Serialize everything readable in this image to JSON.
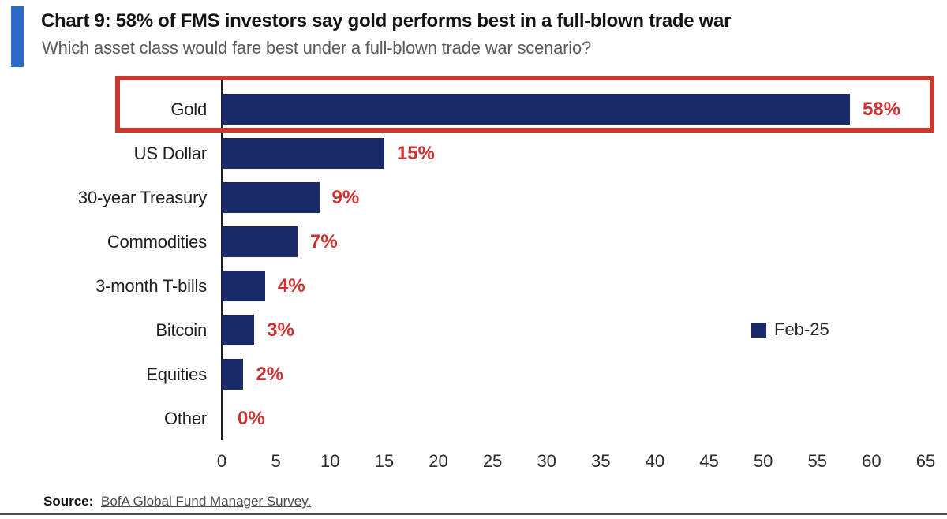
{
  "header": {
    "title": "Chart 9: 58% of FMS investors say gold performs best in a full-blown trade war",
    "subtitle": "Which asset class would fare best under a full-blown trade war scenario?",
    "accent_color": "#2b6bc9"
  },
  "chart_data": {
    "type": "bar",
    "orientation": "horizontal",
    "categories": [
      "Gold",
      "US Dollar",
      "30-year Treasury",
      "Commodities",
      "3-month T-bills",
      "Bitcoin",
      "Equities",
      "Other"
    ],
    "values": [
      58,
      15,
      9,
      7,
      4,
      3,
      2,
      0
    ],
    "value_labels": [
      "58%",
      "15%",
      "9%",
      "7%",
      "4%",
      "3%",
      "2%",
      "0%"
    ],
    "xlim": [
      0,
      65
    ],
    "x_ticks": [
      0,
      5,
      10,
      15,
      20,
      25,
      30,
      35,
      40,
      45,
      50,
      55,
      60,
      65
    ],
    "bar_color": "#1a2a69",
    "value_label_color": "#cf3131",
    "grid": false,
    "legend": {
      "label": "Feb-25",
      "swatch_color": "#1a2a69",
      "position": "right-middle"
    },
    "highlight": {
      "category": "Gold",
      "box_color": "#c63b2e"
    }
  },
  "footer": {
    "source_label": "Source:",
    "source_text": "BofA Global Fund Manager Survey."
  }
}
